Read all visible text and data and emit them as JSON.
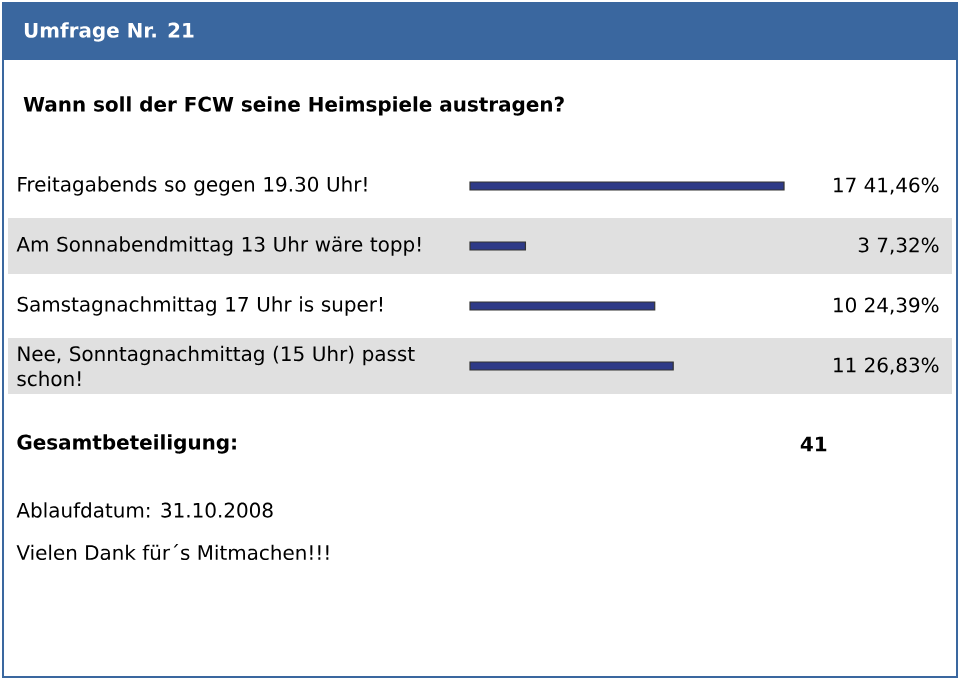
{
  "chart_data": {
    "type": "bar",
    "orientation": "horizontal",
    "title": "Umfrage Nr. 21",
    "subtitle": "Wann soll der FCW seine Heimspiele austragen?",
    "categories": [
      "Freitagabends so gegen 19.30 Uhr!",
      "Am Sonnabendmittag 13 Uhr wäre topp!",
      "Samstagnachmittag 17 Uhr is super!",
      "Nee, Sonntagnachmittag (15 Uhr) passt schon!"
    ],
    "values": [
      17,
      3,
      10,
      11
    ],
    "color": "#2e3a87",
    "value_labels": [
      "17 41,46%",
      "3 7,32%",
      "10 24,39%",
      "11 26,83%"
    ],
    "annotations": [
      "Gesamtbeteiligung:",
      "41",
      "Ablaufdatum: 31.10.2008",
      "Vielen Dank für´s Mitmachen!!!"
    ]
  }
}
